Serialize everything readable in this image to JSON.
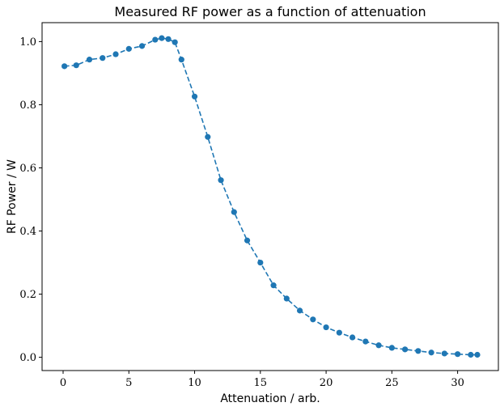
{
  "chart_data": {
    "type": "line",
    "title": "Measured RF power as a function of attenuation",
    "xlabel": "Attenuation / arb.",
    "ylabel": "RF Power / W",
    "xlim": [
      -1.6,
      33.1
    ],
    "ylim": [
      -0.042,
      1.06
    ],
    "xticks": [
      0,
      5,
      10,
      15,
      20,
      25,
      30
    ],
    "yticks": [
      0.0,
      0.2,
      0.4,
      0.6,
      0.8,
      1.0
    ],
    "xtick_labels": [
      "0",
      "5",
      "10",
      "15",
      "20",
      "25",
      "30"
    ],
    "ytick_labels": [
      "0.0",
      "0.2",
      "0.4",
      "0.6",
      "0.8",
      "1.0"
    ],
    "grid": false,
    "line_style": "dashed",
    "marker": "circle",
    "color": "#1f77b4",
    "series": [
      {
        "x": [
          0.1,
          1,
          2,
          3,
          4,
          5,
          6,
          7,
          7.5,
          8,
          8.5,
          9,
          10,
          11,
          12,
          13,
          14,
          15,
          16,
          17,
          18,
          19,
          20,
          21,
          22,
          23,
          24,
          25,
          26,
          27,
          28,
          29,
          30,
          31,
          31.5
        ],
        "y": [
          0.922,
          0.925,
          0.943,
          0.948,
          0.96,
          0.977,
          0.986,
          1.006,
          1.011,
          1.008,
          0.998,
          0.943,
          0.826,
          0.698,
          0.561,
          0.46,
          0.37,
          0.3,
          0.228,
          0.186,
          0.148,
          0.12,
          0.095,
          0.078,
          0.063,
          0.05,
          0.038,
          0.03,
          0.025,
          0.02,
          0.015,
          0.012,
          0.01,
          0.008,
          0.008
        ]
      }
    ]
  }
}
